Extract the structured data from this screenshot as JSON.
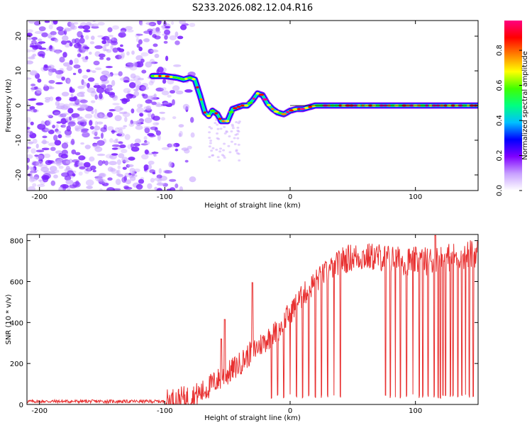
{
  "title": "S233.2026.082.12.04.R16",
  "chart_data": [
    {
      "type": "heatmap",
      "name": "spectrogram",
      "xlabel": "Height of straight line (km)",
      "ylabel": "Frequency (Hz)",
      "xlim": [
        -210,
        150
      ],
      "ylim": [
        -24.5,
        24.5
      ],
      "xticks": [
        -200,
        -100,
        0,
        100
      ],
      "yticks": [
        -20,
        -10,
        0,
        10,
        20
      ],
      "colorbar": {
        "label": "Normalized spectral amplitude",
        "range": [
          0.0,
          0.97
        ],
        "ticks": [
          0.0,
          0.2,
          0.4,
          0.6,
          0.8
        ],
        "tick_labels": [
          "0.0",
          "0.2",
          "0.4",
          "0.6",
          "0.8"
        ],
        "colors": [
          "#ffffff",
          "#c8a0ff",
          "#8000ff",
          "#0000ff",
          "#00c0ff",
          "#00ff80",
          "#40ff00",
          "#ffff00",
          "#ff8000",
          "#ff0000",
          "#ff0080"
        ]
      },
      "ridge": {
        "x": [
          -110,
          -100,
          -90,
          -85,
          -80,
          -76,
          -72,
          -68,
          -65,
          -62,
          -58,
          -55,
          -50,
          -46,
          -42,
          -38,
          -34,
          -30,
          -26,
          -22,
          -18,
          -14,
          -10,
          -5,
          0,
          5,
          10,
          20,
          30,
          40,
          60,
          80,
          100,
          120,
          150
        ],
        "y": [
          8.5,
          8.5,
          8.0,
          7.5,
          8.0,
          7.5,
          3.0,
          -2.0,
          -3.0,
          -1.5,
          -2.5,
          -4.5,
          -4.5,
          -1.0,
          -0.5,
          0.0,
          0.0,
          1.5,
          3.5,
          3.0,
          0.5,
          -1.0,
          -2.0,
          -2.5,
          -1.5,
          -1.0,
          -1.0,
          0.0,
          0.0,
          0.0,
          0.0,
          0.0,
          0.0,
          0.0,
          0.0
        ]
      },
      "noise_region_x": [
        -210,
        -75
      ]
    },
    {
      "type": "line",
      "name": "snr",
      "xlabel": "Height of straight line (km)",
      "ylabel": "SNR (10 * v/v)",
      "xlim": [
        -210,
        150
      ],
      "ylim": [
        0,
        830
      ],
      "xticks": [
        -200,
        -100,
        0,
        100
      ],
      "yticks": [
        0,
        200,
        400,
        600,
        800
      ],
      "color": "#e83030",
      "envelope": {
        "x": [
          -210,
          -100,
          -90,
          -80,
          -70,
          -60,
          -50,
          -40,
          -30,
          -20,
          -10,
          0,
          10,
          20,
          30,
          40,
          50,
          60,
          70,
          80,
          90,
          100,
          110,
          120,
          130,
          140,
          150
        ],
        "y": [
          15,
          15,
          25,
          35,
          60,
          110,
          150,
          200,
          260,
          310,
          360,
          450,
          530,
          600,
          650,
          700,
          720,
          720,
          720,
          710,
          700,
          700,
          700,
          710,
          720,
          730,
          740
        ]
      },
      "spikes": [
        {
          "x": -52,
          "y": 415
        },
        {
          "x": -55,
          "y": 320
        },
        {
          "x": -30,
          "y": 595
        },
        {
          "x": 116,
          "y": 825
        }
      ],
      "dropouts_x": [
        -15,
        -10,
        -5,
        0,
        5,
        10,
        15,
        20,
        25,
        30,
        35,
        40,
        76,
        80,
        84,
        88,
        93,
        98,
        103,
        106,
        110,
        115,
        118,
        120,
        122,
        124,
        128,
        130,
        134,
        137,
        140,
        143,
        146
      ]
    }
  ]
}
